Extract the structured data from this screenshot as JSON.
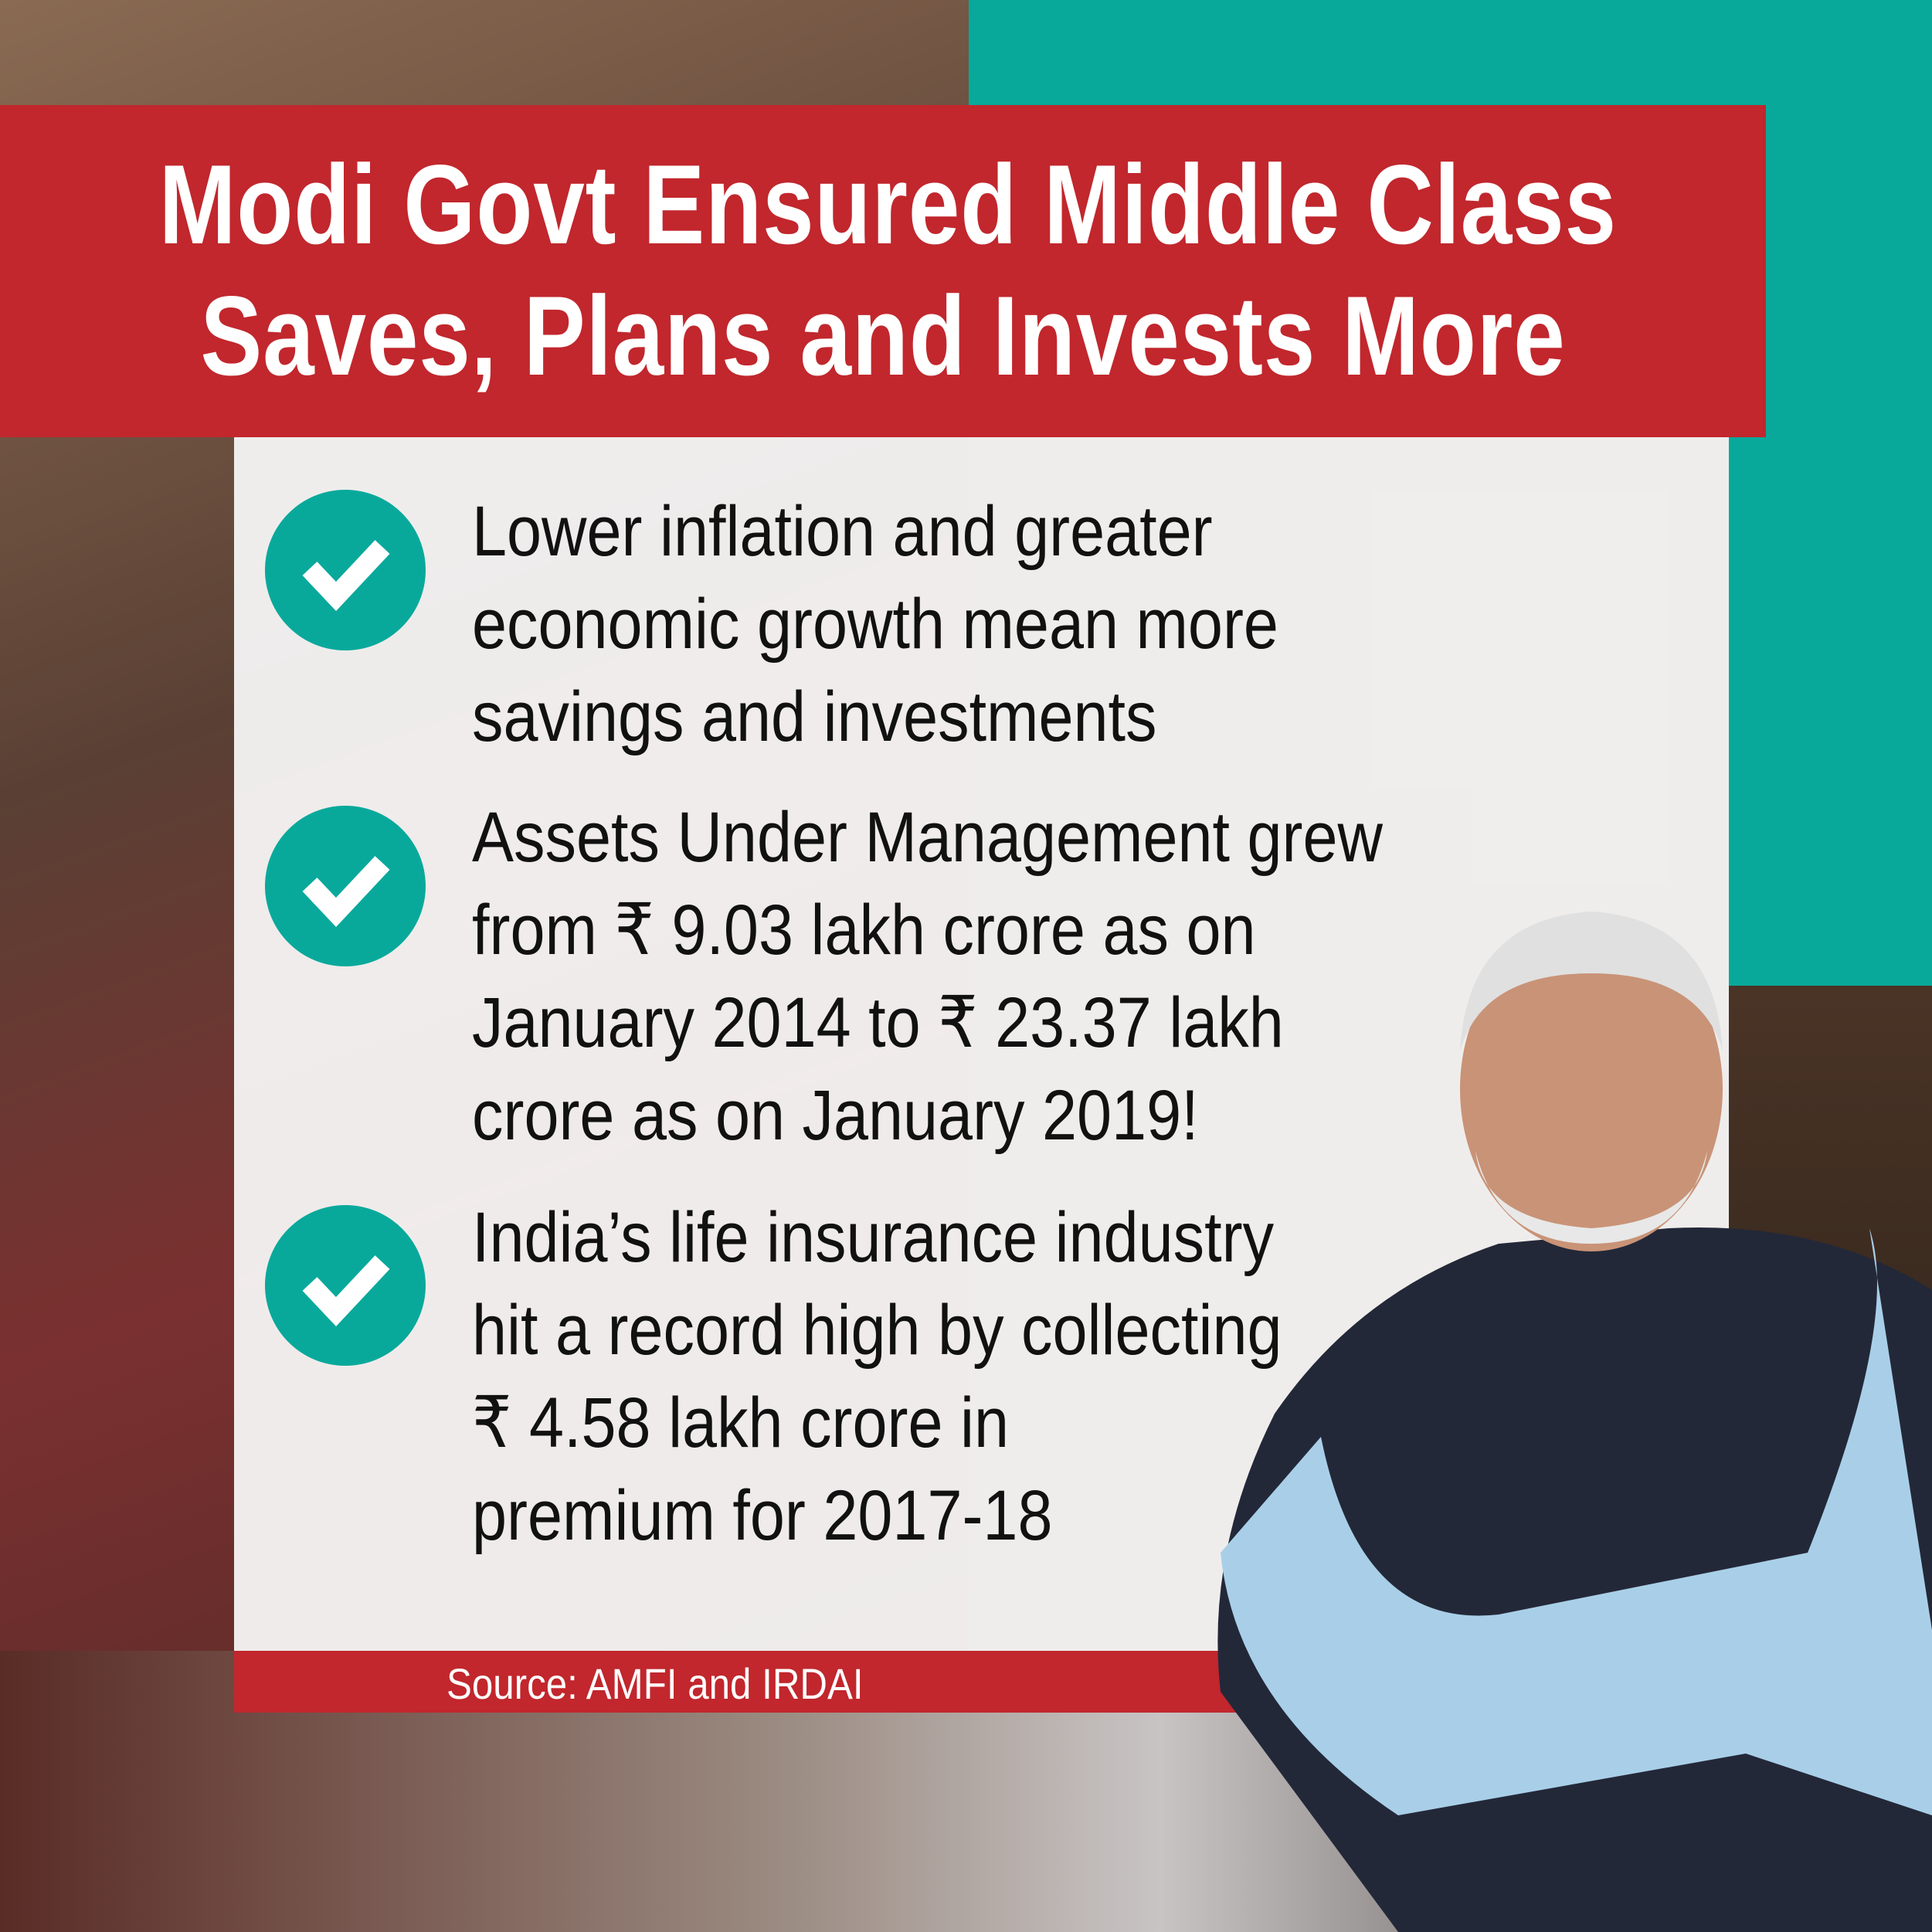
{
  "title": {
    "line1": "Modi Govt Ensured Middle Class",
    "line2": "Saves, Plans and Invests More"
  },
  "points": [
    {
      "icon": "check-circle-icon",
      "lines": [
        "Lower inflation and greater",
        "economic growth mean more",
        "savings and investments"
      ]
    },
    {
      "icon": "check-circle-icon",
      "lines": [
        "Assets Under Management grew",
        "from ₹ 9.03 lakh crore as on",
        "January 2014 to ₹ 23.37 lakh",
        "crore as on January 2019!"
      ]
    },
    {
      "icon": "check-circle-icon",
      "lines": [
        "India’s life insurance industry",
        "hit a record high by collecting",
        "₹ 4.58 lakh crore in",
        "premium for 2017-18"
      ]
    }
  ],
  "source": "Source: AMFI and IRDAI",
  "colors": {
    "red": "#c1272d",
    "teal": "#08a99b"
  }
}
